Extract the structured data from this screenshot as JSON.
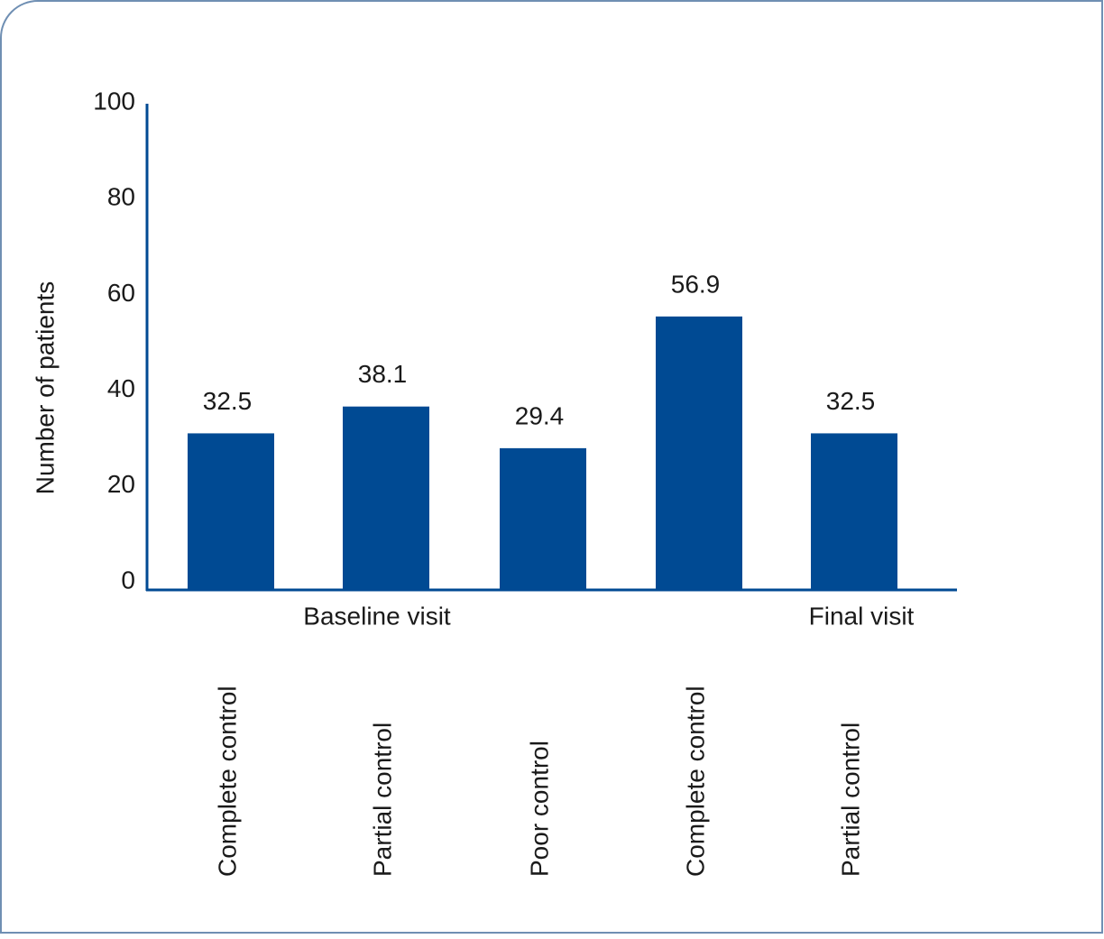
{
  "chart_data": {
    "type": "bar",
    "y_label": "Number of patients",
    "categories": [
      "Complete control",
      "Partial control",
      "Poor control",
      "Complete control",
      "Partial control"
    ],
    "group_labels": [
      "Baseline visit",
      "Final visit"
    ],
    "values": [
      32.5,
      38.1,
      29.4,
      56.9,
      32.5
    ],
    "color": "#004a93",
    "ylim": [
      0,
      100
    ],
    "yticks": [
      0,
      20,
      40,
      60,
      80,
      100
    ],
    "grid": false
  }
}
